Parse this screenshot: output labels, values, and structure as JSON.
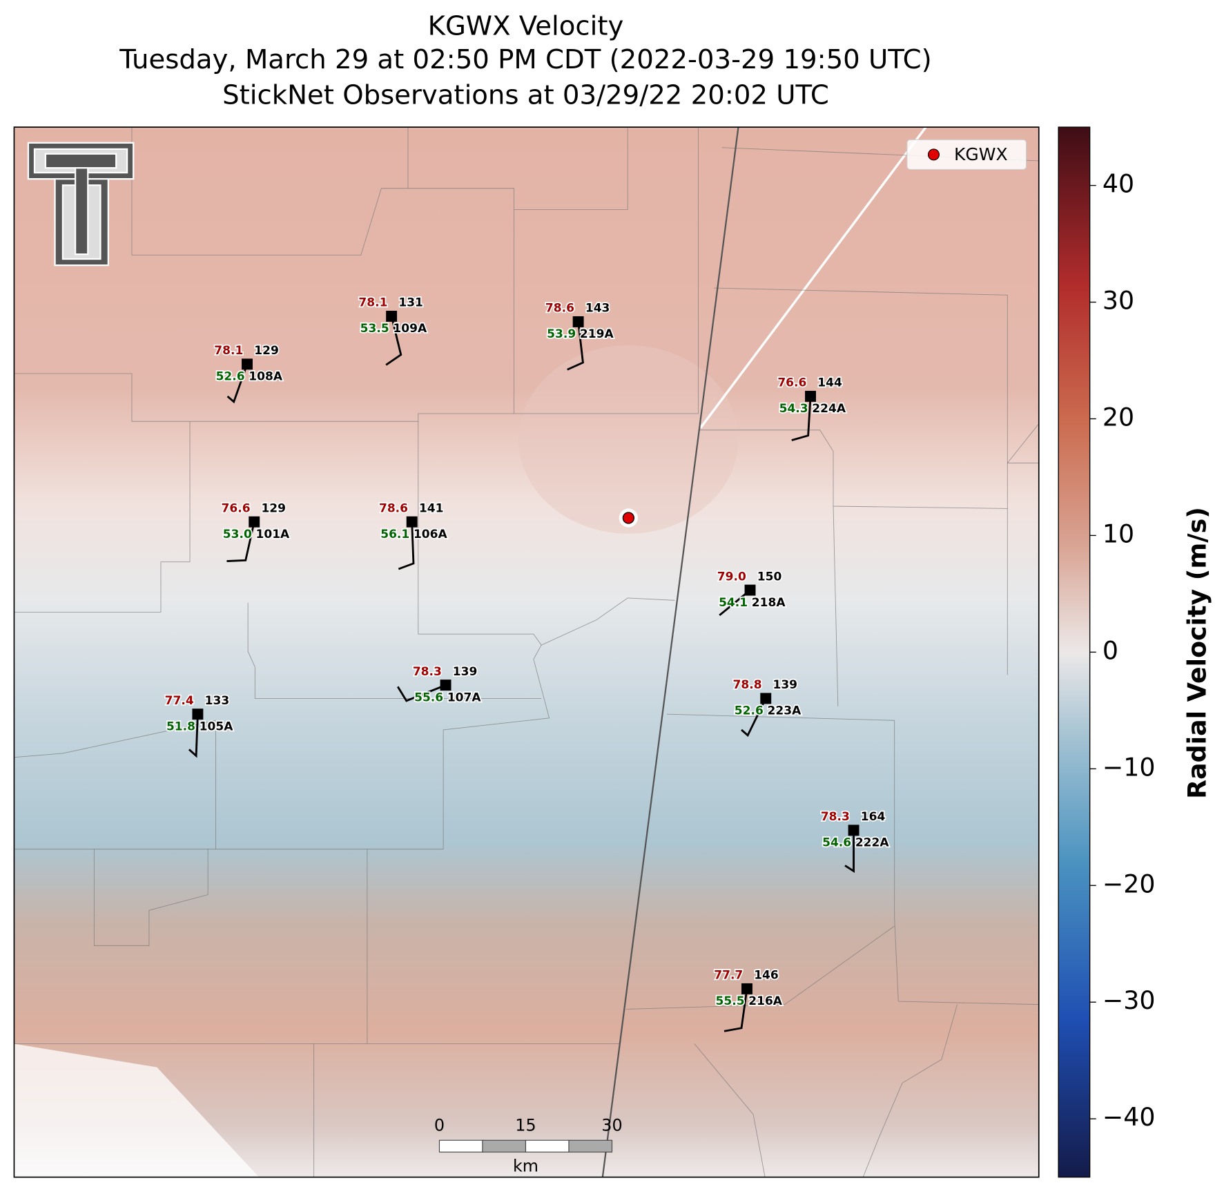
{
  "title": [
    "KGWX Velocity",
    "Tuesday, March 29 at 02:50 PM CDT (2022-03-29 19:50 UTC)",
    "StickNet Observations at 03/29/22 20:02 UTC"
  ],
  "legend": {
    "label": "KGWX",
    "color": "#e00000"
  },
  "colorbar": {
    "label": "Radial Velocity (m/s)",
    "lim": [
      -45,
      45
    ],
    "ticks": [
      {
        "value": -40,
        "label": "−40"
      },
      {
        "value": -30,
        "label": "−30"
      },
      {
        "value": -20,
        "label": "−20"
      },
      {
        "value": -10,
        "label": "−10"
      },
      0,
      10,
      20,
      30,
      40
    ]
  },
  "scale_bar": {
    "ticks": [
      0,
      15,
      30
    ],
    "unit": "km"
  },
  "stations": [
    {
      "id": "108A",
      "temperature": "78.1",
      "dewpoint": "52.6",
      "number": 129
    },
    {
      "id": "109A",
      "temperature": "78.1",
      "dewpoint": "53.5",
      "number": 131
    },
    {
      "id": "219A",
      "temperature": "78.6",
      "dewpoint": "53.9",
      "number": 143
    },
    {
      "id": "224A",
      "temperature": "76.6",
      "dewpoint": "54.3",
      "number": 144
    },
    {
      "id": "101A",
      "temperature": "76.6",
      "dewpoint": "53.0",
      "number": 129
    },
    {
      "id": "106A",
      "temperature": "78.6",
      "dewpoint": "56.1",
      "number": 141
    },
    {
      "id": "218A",
      "temperature": "79.0",
      "dewpoint": "54.1",
      "number": 150
    },
    {
      "id": "107A",
      "temperature": "78.3",
      "dewpoint": "55.6",
      "number": 139
    },
    {
      "id": "105A",
      "temperature": "77.4",
      "dewpoint": "51.8",
      "number": 133
    },
    {
      "id": "223A",
      "temperature": "78.8",
      "dewpoint": "52.6",
      "number": 139
    },
    {
      "id": "222A",
      "temperature": "78.3",
      "dewpoint": "54.6",
      "number": 164
    },
    {
      "id": "216A",
      "temperature": "77.7",
      "dewpoint": "55.5",
      "number": 146
    }
  ]
}
